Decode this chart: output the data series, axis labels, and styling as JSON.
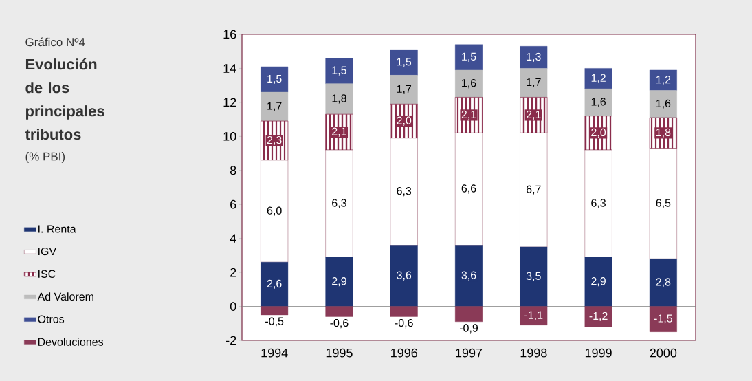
{
  "chart_data": {
    "type": "bar",
    "stacked": true,
    "title": "Evolución de los principales tributos",
    "subtitle": "(% PBI)",
    "annotations": [
      "Gráfico Nº4"
    ],
    "categories": [
      "1994",
      "1995",
      "1996",
      "1997",
      "1998",
      "1999",
      "2000"
    ],
    "ylim": [
      -2,
      16
    ],
    "yticks": [
      -2,
      0,
      2,
      4,
      6,
      8,
      10,
      12,
      14,
      16
    ],
    "legend": "left",
    "grid": false,
    "ref_lines": [
      {
        "axis": "y",
        "value": 0,
        "color": "#808080"
      }
    ],
    "series": [
      {
        "name": "I. Renta",
        "color": "#1f3573",
        "values": [
          2.6,
          2.9,
          3.6,
          3.6,
          3.5,
          2.9,
          2.8
        ],
        "value_labels": [
          "2,6",
          "2,9",
          "3,6",
          "3,6",
          "3,5",
          "2,9",
          "2,8"
        ]
      },
      {
        "name": "IGV",
        "color": "#ffffff",
        "values": [
          6.0,
          6.3,
          6.3,
          6.6,
          6.7,
          6.3,
          6.5
        ],
        "value_labels": [
          "6,0",
          "6,3",
          "6,3",
          "6,6",
          "6,7",
          "6,3",
          "6,5"
        ]
      },
      {
        "name": "ISC",
        "color": "#8a2c4b",
        "values": [
          2.3,
          2.1,
          2.0,
          2.1,
          2.1,
          2.0,
          1.8
        ],
        "value_labels": [
          "2,3",
          "2,1",
          "2,0",
          "2,1",
          "2,1",
          "2,0",
          "1,8"
        ]
      },
      {
        "name": "Ad Valorem",
        "color": "#bdbdbd",
        "values": [
          1.7,
          1.8,
          1.7,
          1.6,
          1.7,
          1.6,
          1.6
        ],
        "value_labels": [
          "1,7",
          "1,8",
          "1,7",
          "1,6",
          "1,7",
          "1,6",
          "1,6"
        ]
      },
      {
        "name": "Otros",
        "color": "#3f4f94",
        "values": [
          1.5,
          1.5,
          1.5,
          1.5,
          1.3,
          1.2,
          1.2
        ],
        "value_labels": [
          "1,5",
          "1,5",
          "1,5",
          "1,5",
          "1,3",
          "1,2",
          "1,2"
        ]
      },
      {
        "name": "Devoluciones",
        "color": "#8a3a57",
        "values": [
          -0.5,
          -0.6,
          -0.6,
          -0.9,
          -1.1,
          -1.2,
          -1.5
        ],
        "value_labels": [
          "-0,5",
          "-0,6",
          "-0,6",
          "-0,9",
          "-1,1",
          "-1,2",
          "-1,5"
        ]
      }
    ]
  }
}
